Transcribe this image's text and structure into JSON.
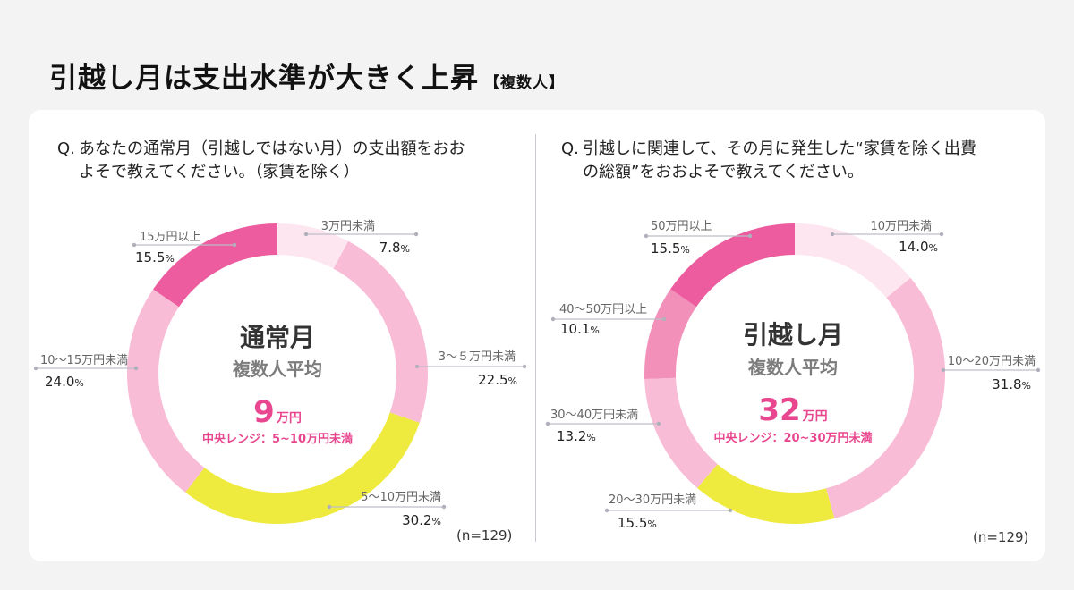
{
  "title": {
    "main": "引越し月は支出水準が大きく上昇",
    "tag": "【複数人】"
  },
  "colors": {
    "deep_pink": "#ec5c9e",
    "mid_pink": "#f290ba",
    "light_pink": "#f9bcd6",
    "pale_pink": "#fde6ef",
    "yellow": "#eeea3e",
    "accent_text": "#e8478f",
    "center_gray": "#7c7c7c"
  },
  "left": {
    "question_prefix": "Q.",
    "question_line1": "あなたの通常月（引越しではない月）の支出額をおお",
    "question_line2": "よそで教えてください。（家賃を除く）",
    "center_title": "通常月",
    "center_subtitle": "複数人平均",
    "average_value": "9",
    "average_unit": "万円",
    "median_range": "中央レンジ：5~10万円未満",
    "n_label": "(n=129)"
  },
  "right": {
    "question_prefix": "Q.",
    "question_line1": "引越しに関連して、その月に発生した“家賃を除く出費",
    "question_line2": "の総額”をおおよそで教えてください。",
    "center_title": "引越し月",
    "center_subtitle": "複数人平均",
    "average_value": "32",
    "average_unit": "万円",
    "median_range": "中央レンジ：20~30万円未満",
    "n_label": "(n=129)"
  },
  "chart_data": [
    {
      "type": "pie",
      "title": "通常月",
      "categories": [
        "3万円未満",
        "3～５万円未満",
        "5～10万円未満",
        "10～15万円未満",
        "15万円以上"
      ],
      "values": [
        7.8,
        22.5,
        30.2,
        24.0,
        15.5
      ],
      "value_labels": [
        "7.8",
        "22.5",
        "30.2",
        "24.0",
        "15.5"
      ],
      "unit": "%",
      "colors": [
        "#fde6ef",
        "#f9bcd6",
        "#eeea3e",
        "#f9bcd6",
        "#ec5c9e"
      ]
    },
    {
      "type": "pie",
      "title": "引越し月",
      "categories": [
        "10万円未満",
        "10～20万円未満",
        "20～30万円未満",
        "30～40万円未満",
        "40～50万円以上",
        "50万円以上"
      ],
      "values": [
        14.0,
        31.8,
        15.5,
        13.2,
        10.1,
        15.5
      ],
      "value_labels": [
        "14.0",
        "31.8",
        "15.5",
        "13.2",
        "10.1",
        "15.5"
      ],
      "unit": "%",
      "colors": [
        "#fde6ef",
        "#f9bcd6",
        "#eeea3e",
        "#f9bcd6",
        "#f290ba",
        "#ec5c9e"
      ]
    }
  ]
}
